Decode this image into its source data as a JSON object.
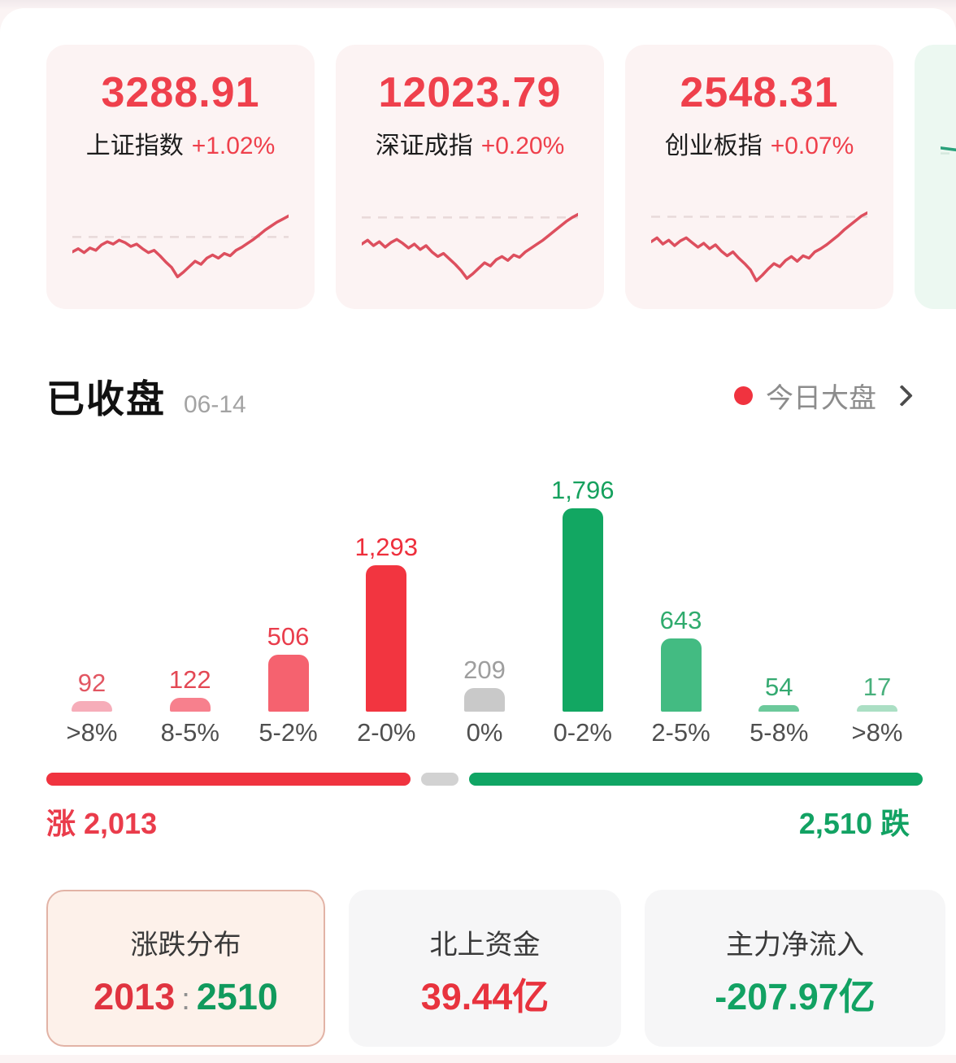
{
  "colors": {
    "accent_red": "#ef404c",
    "accent_green": "#12a263",
    "flat_gray": "#cbcbcb",
    "dot_red": "#f0333f",
    "selected_card_bg": "#fdf1ea",
    "selected_card_border": "#e2b3a6"
  },
  "header_cards": [
    {
      "value": "3288.91",
      "name": "上证指数",
      "change": "+1.02%",
      "bg": "#fcf3f3",
      "line_color": "#dd4f5e",
      "baseline_color": "#e8d9d9",
      "baseline": 0.39,
      "points": [
        58,
        54,
        59,
        53,
        56,
        49,
        45,
        48,
        43,
        46,
        51,
        48,
        54,
        59,
        56,
        63,
        71,
        78,
        90,
        84,
        77,
        70,
        74,
        66,
        62,
        66,
        60,
        63,
        56,
        52,
        47,
        42,
        36,
        30,
        25,
        20,
        16,
        12
      ]
    },
    {
      "value": "12023.79",
      "name": "深证成指",
      "change": "+0.20%",
      "bg": "#fcf3f3",
      "line_color": "#dd4f5e",
      "baseline_color": "#e8d9d9",
      "baseline": 0.14,
      "points": [
        48,
        43,
        50,
        45,
        52,
        46,
        42,
        47,
        53,
        48,
        55,
        50,
        58,
        64,
        60,
        67,
        74,
        82,
        92,
        86,
        79,
        72,
        76,
        68,
        64,
        69,
        62,
        65,
        58,
        53,
        48,
        43,
        37,
        31,
        25,
        19,
        14,
        10
      ]
    },
    {
      "value": "2548.31",
      "name": "创业板指",
      "change": "+0.07%",
      "bg": "#fcf3f3",
      "line_color": "#dd4f5e",
      "baseline_color": "#e8d9d9",
      "baseline": 0.13,
      "points": [
        45,
        40,
        48,
        43,
        50,
        44,
        40,
        46,
        52,
        47,
        54,
        49,
        57,
        63,
        58,
        66,
        73,
        81,
        95,
        88,
        80,
        73,
        77,
        69,
        64,
        70,
        63,
        66,
        58,
        54,
        49,
        43,
        37,
        30,
        24,
        18,
        12,
        8
      ]
    },
    {
      "value": "",
      "name": "",
      "change": "",
      "bg": "#ecf8f1",
      "line_color": "#2aa17b",
      "baseline_color": "#d5e7dd",
      "baseline": 0.35,
      "points": [
        28,
        33,
        40,
        48,
        56,
        63,
        70,
        76
      ]
    }
  ],
  "section": {
    "title": "已收盘",
    "date": "06-14",
    "link_label": "今日大盘"
  },
  "chart_data": {
    "type": "bar",
    "title": "",
    "xlabel": "",
    "ylabel": "",
    "categories": [
      ">8%",
      "8-5%",
      "5-2%",
      "2-0%",
      "0%",
      "0-2%",
      "2-5%",
      "5-8%",
      ">8%"
    ],
    "values": [
      92,
      122,
      506,
      1293,
      209,
      1796,
      643,
      54,
      17
    ],
    "value_labels": [
      "92",
      "122",
      "506",
      "1,293",
      "209",
      "1,796",
      "643",
      "54",
      "17"
    ],
    "bar_colors": [
      "#f6adb9",
      "#f7808d",
      "#f5626f",
      "#f23540",
      "#c9c9c9",
      "#12a762",
      "#43bb82",
      "#6cc99b",
      "#abdfc4"
    ],
    "label_colors": [
      "#e25662",
      "#e34854",
      "#e93d4c",
      "#ee2f3c",
      "#9e9e9e",
      "#16a15e",
      "#2fab6d",
      "#35aa71",
      "#48b07c"
    ],
    "ylim": [
      0,
      1796
    ],
    "grid": false,
    "legend": "none"
  },
  "ratio_bar": {
    "up_count": 2013,
    "flat_count": 209,
    "down_count": 2510,
    "up_label": "涨 2,013",
    "down_label": "2,510 跌",
    "up_color": "#f0333f",
    "flat_color": "#d2d2d2",
    "down_color": "#10a564"
  },
  "stat_cards": {
    "distribution": {
      "title": "涨跌分布",
      "up": "2013",
      "sep": ":",
      "down": "2510"
    },
    "northbound": {
      "title": "北上资金",
      "value": "39.44亿"
    },
    "main_inflow": {
      "title": "主力净流入",
      "value": "-207.97亿"
    }
  }
}
